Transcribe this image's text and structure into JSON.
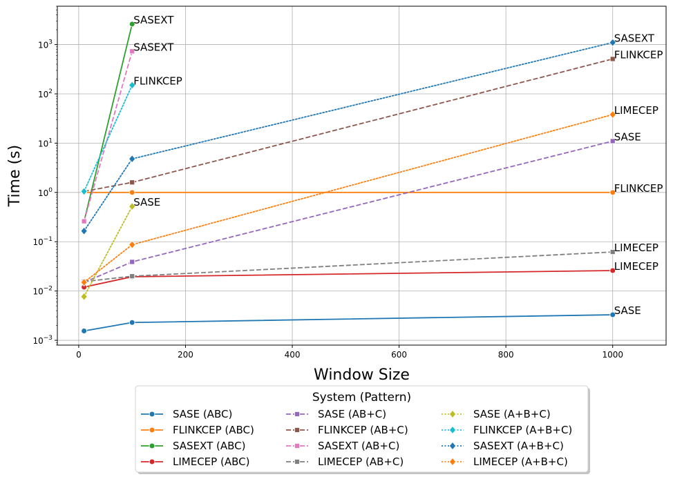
{
  "chart_data": {
    "type": "line",
    "xlabel": "Window Size",
    "ylabel": "Time (s)",
    "yscale": "log",
    "xlim": [
      -40,
      1100
    ],
    "ylim": [
      0.0008,
      6000
    ],
    "grid": true,
    "x_ticks": [
      0,
      200,
      400,
      600,
      800,
      1000
    ],
    "x_tick_labels": [
      "0",
      "200",
      "400",
      "600",
      "800",
      "1000"
    ],
    "y_ticks": [
      0.001,
      0.01,
      0.1,
      1,
      10,
      100,
      1000
    ],
    "y_tick_labels": [
      {
        "base": "10",
        "exp": "−3"
      },
      {
        "base": "10",
        "exp": "−2"
      },
      {
        "base": "10",
        "exp": "−1"
      },
      {
        "base": "10",
        "exp": "0"
      },
      {
        "base": "10",
        "exp": "1"
      },
      {
        "base": "10",
        "exp": "2"
      },
      {
        "base": "10",
        "exp": "3"
      }
    ],
    "legend": {
      "title": "System (Pattern)",
      "placement": "below-center",
      "columns": 3
    },
    "series": [
      {
        "name": "SASE (ABC)",
        "color": "#1f77b4",
        "dash": "solid",
        "marker": "circle",
        "x": [
          10,
          100,
          1000
        ],
        "y": [
          0.00155,
          0.0023,
          0.0033
        ]
      },
      {
        "name": "FLINKCEP (ABC)",
        "color": "#ff7f0e",
        "dash": "solid",
        "marker": "circle",
        "x": [
          10,
          100,
          1000
        ],
        "y": [
          1.0,
          1.0,
          1.0
        ]
      },
      {
        "name": "SASEXT (ABC)",
        "color": "#2ca02c",
        "dash": "solid",
        "marker": "circle",
        "x": [
          10,
          100
        ],
        "y": [
          0.26,
          2600
        ]
      },
      {
        "name": "LIMECEP (ABC)",
        "color": "#d62728",
        "dash": "solid",
        "marker": "circle",
        "x": [
          10,
          100,
          1000
        ],
        "y": [
          0.012,
          0.0195,
          0.026
        ]
      },
      {
        "name": "SASE (AB+C)",
        "color": "#9467bd",
        "dash": "dashed",
        "marker": "square",
        "x": [
          10,
          100,
          1000
        ],
        "y": [
          0.015,
          0.039,
          11
        ]
      },
      {
        "name": "FLINKCEP (AB+C)",
        "color": "#8c564b",
        "dash": "dashed",
        "marker": "square",
        "x": [
          10,
          100,
          1000
        ],
        "y": [
          1.05,
          1.6,
          510
        ]
      },
      {
        "name": "SASEXT (AB+C)",
        "color": "#e377c2",
        "dash": "dashed",
        "marker": "square",
        "x": [
          10,
          100
        ],
        "y": [
          0.26,
          730
        ]
      },
      {
        "name": "LIMECEP (AB+C)",
        "color": "#7f7f7f",
        "dash": "dashed",
        "marker": "square",
        "x": [
          10,
          100,
          1000
        ],
        "y": [
          0.0155,
          0.02,
          0.062
        ]
      },
      {
        "name": "SASE (A+B+C)",
        "color": "#bcbd22",
        "dash": "dotted",
        "marker": "diamond",
        "x": [
          10,
          100
        ],
        "y": [
          0.0077,
          0.52
        ]
      },
      {
        "name": "FLINKCEP (A+B+C)",
        "color": "#17becf",
        "dash": "dotted",
        "marker": "diamond",
        "x": [
          10,
          100
        ],
        "y": [
          1.05,
          150
        ]
      },
      {
        "name": "SASEXT (A+B+C)",
        "color": "#1f77b4",
        "dash": "dotted",
        "marker": "diamond",
        "x": [
          10,
          100,
          1000
        ],
        "y": [
          0.165,
          4.8,
          1100
        ]
      },
      {
        "name": "LIMECEP (A+B+C)",
        "color": "#ff7f0e",
        "dash": "dotted",
        "marker": "diamond",
        "x": [
          10,
          100,
          1000
        ],
        "y": [
          0.015,
          0.087,
          38
        ]
      }
    ],
    "annotations": [
      {
        "text": "SASEXT",
        "x": 100,
        "y": 2600
      },
      {
        "text": "SASEXT",
        "x": 100,
        "y": 730
      },
      {
        "text": "FLINKCEP",
        "x": 100,
        "y": 150
      },
      {
        "text": "SASE",
        "x": 100,
        "y": 0.52
      },
      {
        "text": "SASEXT",
        "x": 1000,
        "y": 1100
      },
      {
        "text": "FLINKCEP",
        "x": 1000,
        "y": 510
      },
      {
        "text": "LIMECEP",
        "x": 1000,
        "y": 38
      },
      {
        "text": "SASE",
        "x": 1000,
        "y": 11
      },
      {
        "text": "FLINKCEP",
        "x": 1000,
        "y": 1.0
      },
      {
        "text": "LIMECEP",
        "x": 1000,
        "y": 0.062
      },
      {
        "text": "LIMECEP",
        "x": 1000,
        "y": 0.026
      },
      {
        "text": "SASE",
        "x": 1000,
        "y": 0.0033
      }
    ]
  }
}
